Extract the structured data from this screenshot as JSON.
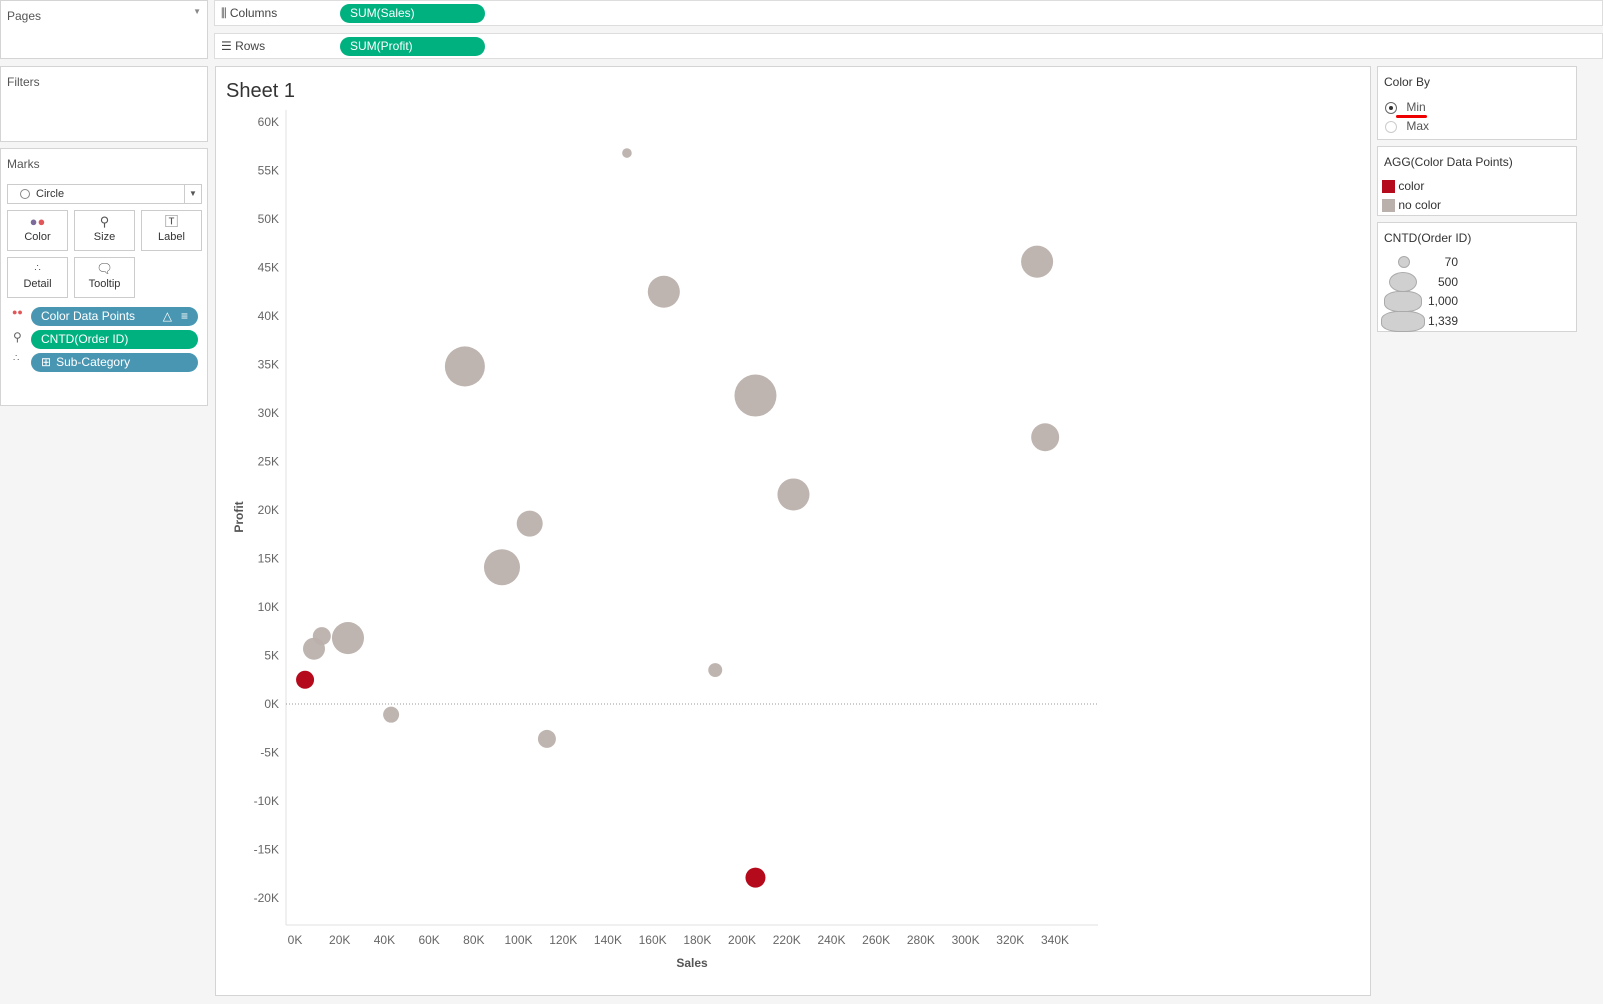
{
  "left": {
    "pages": "Pages",
    "filters": "Filters",
    "marks": "Marks",
    "mark_type": "Circle",
    "cards": [
      {
        "label": "Color"
      },
      {
        "label": "Size"
      },
      {
        "label": "Label"
      },
      {
        "label": "Detail"
      },
      {
        "label": "Tooltip"
      }
    ],
    "pills": [
      {
        "label": "Color Data Points",
        "encoding": "color"
      },
      {
        "label": "CNTD(Order ID)",
        "encoding": "size"
      },
      {
        "label": "Sub-Category",
        "encoding": "detail"
      }
    ]
  },
  "shelves": {
    "columns_label": "Columns",
    "columns_pill": "SUM(Sales)",
    "rows_label": "Rows",
    "rows_pill": "SUM(Profit)"
  },
  "sheet_title": "Sheet 1",
  "right": {
    "color_by": {
      "title": "Color By",
      "options": [
        "Min",
        "Max"
      ],
      "selected": "Min"
    },
    "color_legend": {
      "title": "AGG(Color Data Points)",
      "items": [
        {
          "label": "color",
          "color": "#b5091c"
        },
        {
          "label": "no color",
          "color": "#bab0ac"
        }
      ]
    },
    "size_legend": {
      "title": "CNTD(Order ID)",
      "items": [
        "70",
        "500",
        "1,000",
        "1,339"
      ]
    }
  },
  "colors": {
    "accent_green": "#00b180",
    "pill_blue": "#4996b2"
  },
  "chart_data": {
    "type": "scatter",
    "xlabel": "Sales",
    "ylabel": "Profit",
    "xlim": [
      0,
      340000
    ],
    "ylim": [
      -20000,
      60000
    ],
    "xticks": [
      "0K",
      "20K",
      "40K",
      "60K",
      "80K",
      "100K",
      "120K",
      "140K",
      "160K",
      "180K",
      "200K",
      "220K",
      "240K",
      "260K",
      "280K",
      "300K",
      "320K",
      "340K"
    ],
    "yticks": [
      "60K",
      "55K",
      "50K",
      "45K",
      "40K",
      "35K",
      "30K",
      "25K",
      "20K",
      "15K",
      "10K",
      "5K",
      "0K",
      "-5K",
      "-10K",
      "-15K",
      "-20K"
    ],
    "grid": false,
    "reference_line_y": 0,
    "points": [
      {
        "x": 148500,
        "y": 56800,
        "size": 70,
        "color": "no color"
      },
      {
        "x": 165000,
        "y": 42500,
        "size": 780,
        "color": "no color"
      },
      {
        "x": 332000,
        "y": 45600,
        "size": 780,
        "color": "no color"
      },
      {
        "x": 76000,
        "y": 34800,
        "size": 1215,
        "color": "no color"
      },
      {
        "x": 206000,
        "y": 31800,
        "size": 1339,
        "color": "no color"
      },
      {
        "x": 335600,
        "y": 27500,
        "size": 595,
        "color": "no color"
      },
      {
        "x": 223000,
        "y": 21600,
        "size": 780,
        "color": "no color"
      },
      {
        "x": 105000,
        "y": 18600,
        "size": 513,
        "color": "no color"
      },
      {
        "x": 92600,
        "y": 14100,
        "size": 984,
        "color": "no color"
      },
      {
        "x": 23700,
        "y": 6800,
        "size": 780,
        "color": "no color"
      },
      {
        "x": 12000,
        "y": 7000,
        "size": 246,
        "color": "no color"
      },
      {
        "x": 8500,
        "y": 5700,
        "size": 367,
        "color": "no color"
      },
      {
        "x": 4500,
        "y": 2500,
        "size": 246,
        "color": "color"
      },
      {
        "x": 188000,
        "y": 3500,
        "size": 148,
        "color": "no color"
      },
      {
        "x": 43000,
        "y": -1100,
        "size": 194,
        "color": "no color"
      },
      {
        "x": 112700,
        "y": -3600,
        "size": 246,
        "color": "no color"
      },
      {
        "x": 206000,
        "y": -17900,
        "size": 304,
        "color": "color"
      }
    ]
  }
}
